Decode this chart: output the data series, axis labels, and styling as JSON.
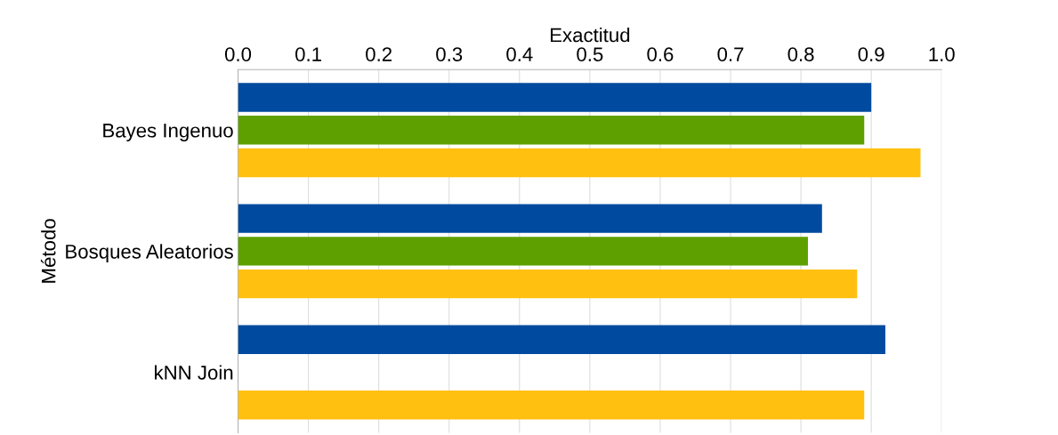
{
  "chart_data": {
    "type": "bar",
    "orientation": "horizontal",
    "xlabel": "Exactitud",
    "ylabel": "Método",
    "categories": [
      "Bayes Ingenuo",
      "Bosques Aleatorios",
      "kNN Join"
    ],
    "series": [
      {
        "color": "#004a9f",
        "values": [
          0.9,
          0.83,
          0.92
        ]
      },
      {
        "color": "#5ea000",
        "values": [
          0.89,
          0.81,
          null
        ]
      },
      {
        "color": "#ffc010",
        "values": [
          0.97,
          0.88,
          0.89
        ]
      }
    ],
    "xlim": [
      0,
      1
    ],
    "xticks": [
      {
        "value": 0,
        "label": "0.0"
      },
      0.1,
      0.2,
      0.3,
      0.4,
      0.5,
      0.6,
      0.7,
      0.8,
      0.9,
      {
        "value": 1,
        "label": "1.0"
      }
    ],
    "grid": "x"
  }
}
